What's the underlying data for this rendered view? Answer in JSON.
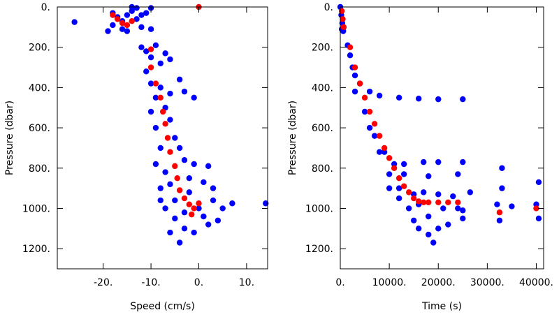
{
  "chart_data": [
    {
      "type": "scatter",
      "x_label": "Speed (cm/s)",
      "y_label": "Pressure (dbar)",
      "xlim": [
        -29.6,
        14.4
      ],
      "ylim": [
        0,
        1300
      ],
      "y_reversed": true,
      "xticks": [
        {
          "value": -20,
          "label": "-20."
        },
        {
          "value": -10,
          "label": "-10."
        },
        {
          "value": 0,
          "label": "0."
        },
        {
          "value": 10,
          "label": "10."
        }
      ],
      "yticks": [
        {
          "value": 0,
          "label": "0."
        },
        {
          "value": 200,
          "label": "200."
        },
        {
          "value": 400,
          "label": "400."
        },
        {
          "value": 600,
          "label": "600."
        },
        {
          "value": 800,
          "label": "800."
        },
        {
          "value": 1000,
          "label": "1000."
        },
        {
          "value": 1200,
          "label": "1200."
        }
      ],
      "series": [
        {
          "color": "#0000ff",
          "x": [
            -26,
            -19,
            -18,
            -17,
            -16,
            -15,
            -14,
            -13,
            -12,
            -11,
            -10,
            -13,
            -16,
            -18,
            -15,
            -12,
            -14,
            -10,
            -12,
            -11,
            -9,
            -10,
            -11,
            -8,
            -7,
            -6,
            -10,
            -8,
            -9,
            -7,
            -6,
            -4,
            -3,
            -1,
            -10,
            -9,
            -6,
            -5,
            -8,
            -4,
            -9,
            -7,
            -3,
            -1,
            2,
            -8,
            -6,
            -2,
            1,
            3,
            -7,
            -5,
            -3,
            -1,
            1,
            3,
            5,
            7,
            -6,
            -4,
            14,
            -8,
            -2,
            2,
            -5,
            0,
            -3,
            4
          ],
          "y": [
            75,
            120,
            30,
            50,
            110,
            40,
            20,
            60,
            100,
            30,
            5,
            5,
            70,
            90,
            120,
            40,
            0,
            110,
            200,
            220,
            190,
            250,
            320,
            280,
            230,
            260,
            380,
            400,
            450,
            500,
            430,
            360,
            420,
            450,
            520,
            600,
            560,
            650,
            700,
            700,
            780,
            820,
            760,
            780,
            790,
            900,
            880,
            850,
            870,
            900,
            1000,
            1050,
            1100,
            1120,
            1040,
            960,
            1000,
            975,
            1120,
            1170,
            975,
            960,
            920,
            1080,
            960,
            1000,
            1020,
            1060
          ]
        },
        {
          "color": "#ff0000",
          "x": [
            -18,
            -17,
            -16,
            -15,
            -14,
            -10,
            -10,
            -9,
            -8,
            -7.5,
            -7,
            -6.5,
            -6,
            -5,
            -4.5,
            -4,
            -3,
            -2,
            -1,
            0,
            -1.5,
            0
          ],
          "y": [
            40,
            60,
            80,
            90,
            70,
            210,
            300,
            380,
            450,
            520,
            580,
            650,
            720,
            790,
            850,
            910,
            950,
            980,
            1000,
            975,
            1030,
            0
          ]
        }
      ]
    },
    {
      "type": "scatter",
      "x_label": "Time (s)",
      "y_label": "Pressure (dbar)",
      "xlim": [
        0,
        41500
      ],
      "ylim": [
        0,
        1300
      ],
      "y_reversed": true,
      "xticks": [
        {
          "value": 0,
          "label": "0."
        },
        {
          "value": 10000,
          "label": "10000."
        },
        {
          "value": 20000,
          "label": "20000."
        },
        {
          "value": 30000,
          "label": "30000."
        },
        {
          "value": 40000,
          "label": "40000."
        }
      ],
      "yticks": [
        {
          "value": 0,
          "label": "0."
        },
        {
          "value": 200,
          "label": "200."
        },
        {
          "value": 400,
          "label": "400."
        },
        {
          "value": 600,
          "label": "600."
        },
        {
          "value": 800,
          "label": "800."
        },
        {
          "value": 1000,
          "label": "1000."
        },
        {
          "value": 1200,
          "label": "1200."
        }
      ],
      "series": [
        {
          "color": "#0000ff",
          "x": [
            0,
            200,
            400,
            600,
            300,
            1500,
            2000,
            2500,
            3000,
            4000,
            6000,
            8000,
            12000,
            16000,
            20000,
            25000,
            3000,
            5000,
            7000,
            9000,
            11000,
            13000,
            17000,
            20000,
            25000,
            13000,
            18000,
            24000,
            6000,
            8000,
            10000,
            12000,
            14000,
            15000,
            16000,
            18000,
            19000,
            20000,
            22000,
            25000,
            15000,
            17000,
            20000,
            23000,
            25000,
            26500,
            32000,
            32500,
            33000,
            33000,
            35000,
            40000,
            40500,
            40500,
            21000,
            18000,
            16000,
            24000,
            12000,
            10000
          ],
          "y": [
            0,
            40,
            80,
            120,
            110,
            190,
            240,
            300,
            340,
            380,
            420,
            440,
            450,
            455,
            458,
            458,
            420,
            520,
            640,
            720,
            780,
            780,
            770,
            770,
            770,
            830,
            840,
            830,
            600,
            720,
            830,
            900,
            1000,
            1060,
            1100,
            1130,
            1170,
            1100,
            1080,
            1050,
            930,
            920,
            930,
            940,
            1010,
            920,
            980,
            1060,
            800,
            900,
            990,
            980,
            870,
            1050,
            1000,
            1040,
            980,
            1000,
            950,
            900
          ]
        },
        {
          "color": "#ff0000",
          "x": [
            300,
            500,
            700,
            2000,
            3000,
            4000,
            5000,
            6000,
            7000,
            8000,
            9000,
            10000,
            11000,
            12000,
            13000,
            14000,
            15000,
            16000,
            17000,
            18000,
            20000,
            22000,
            24000,
            32500,
            40000
          ],
          "y": [
            20,
            60,
            100,
            200,
            300,
            380,
            450,
            520,
            580,
            640,
            700,
            750,
            800,
            850,
            890,
            920,
            950,
            965,
            970,
            970,
            970,
            970,
            970,
            1020,
            1000
          ]
        }
      ]
    }
  ]
}
